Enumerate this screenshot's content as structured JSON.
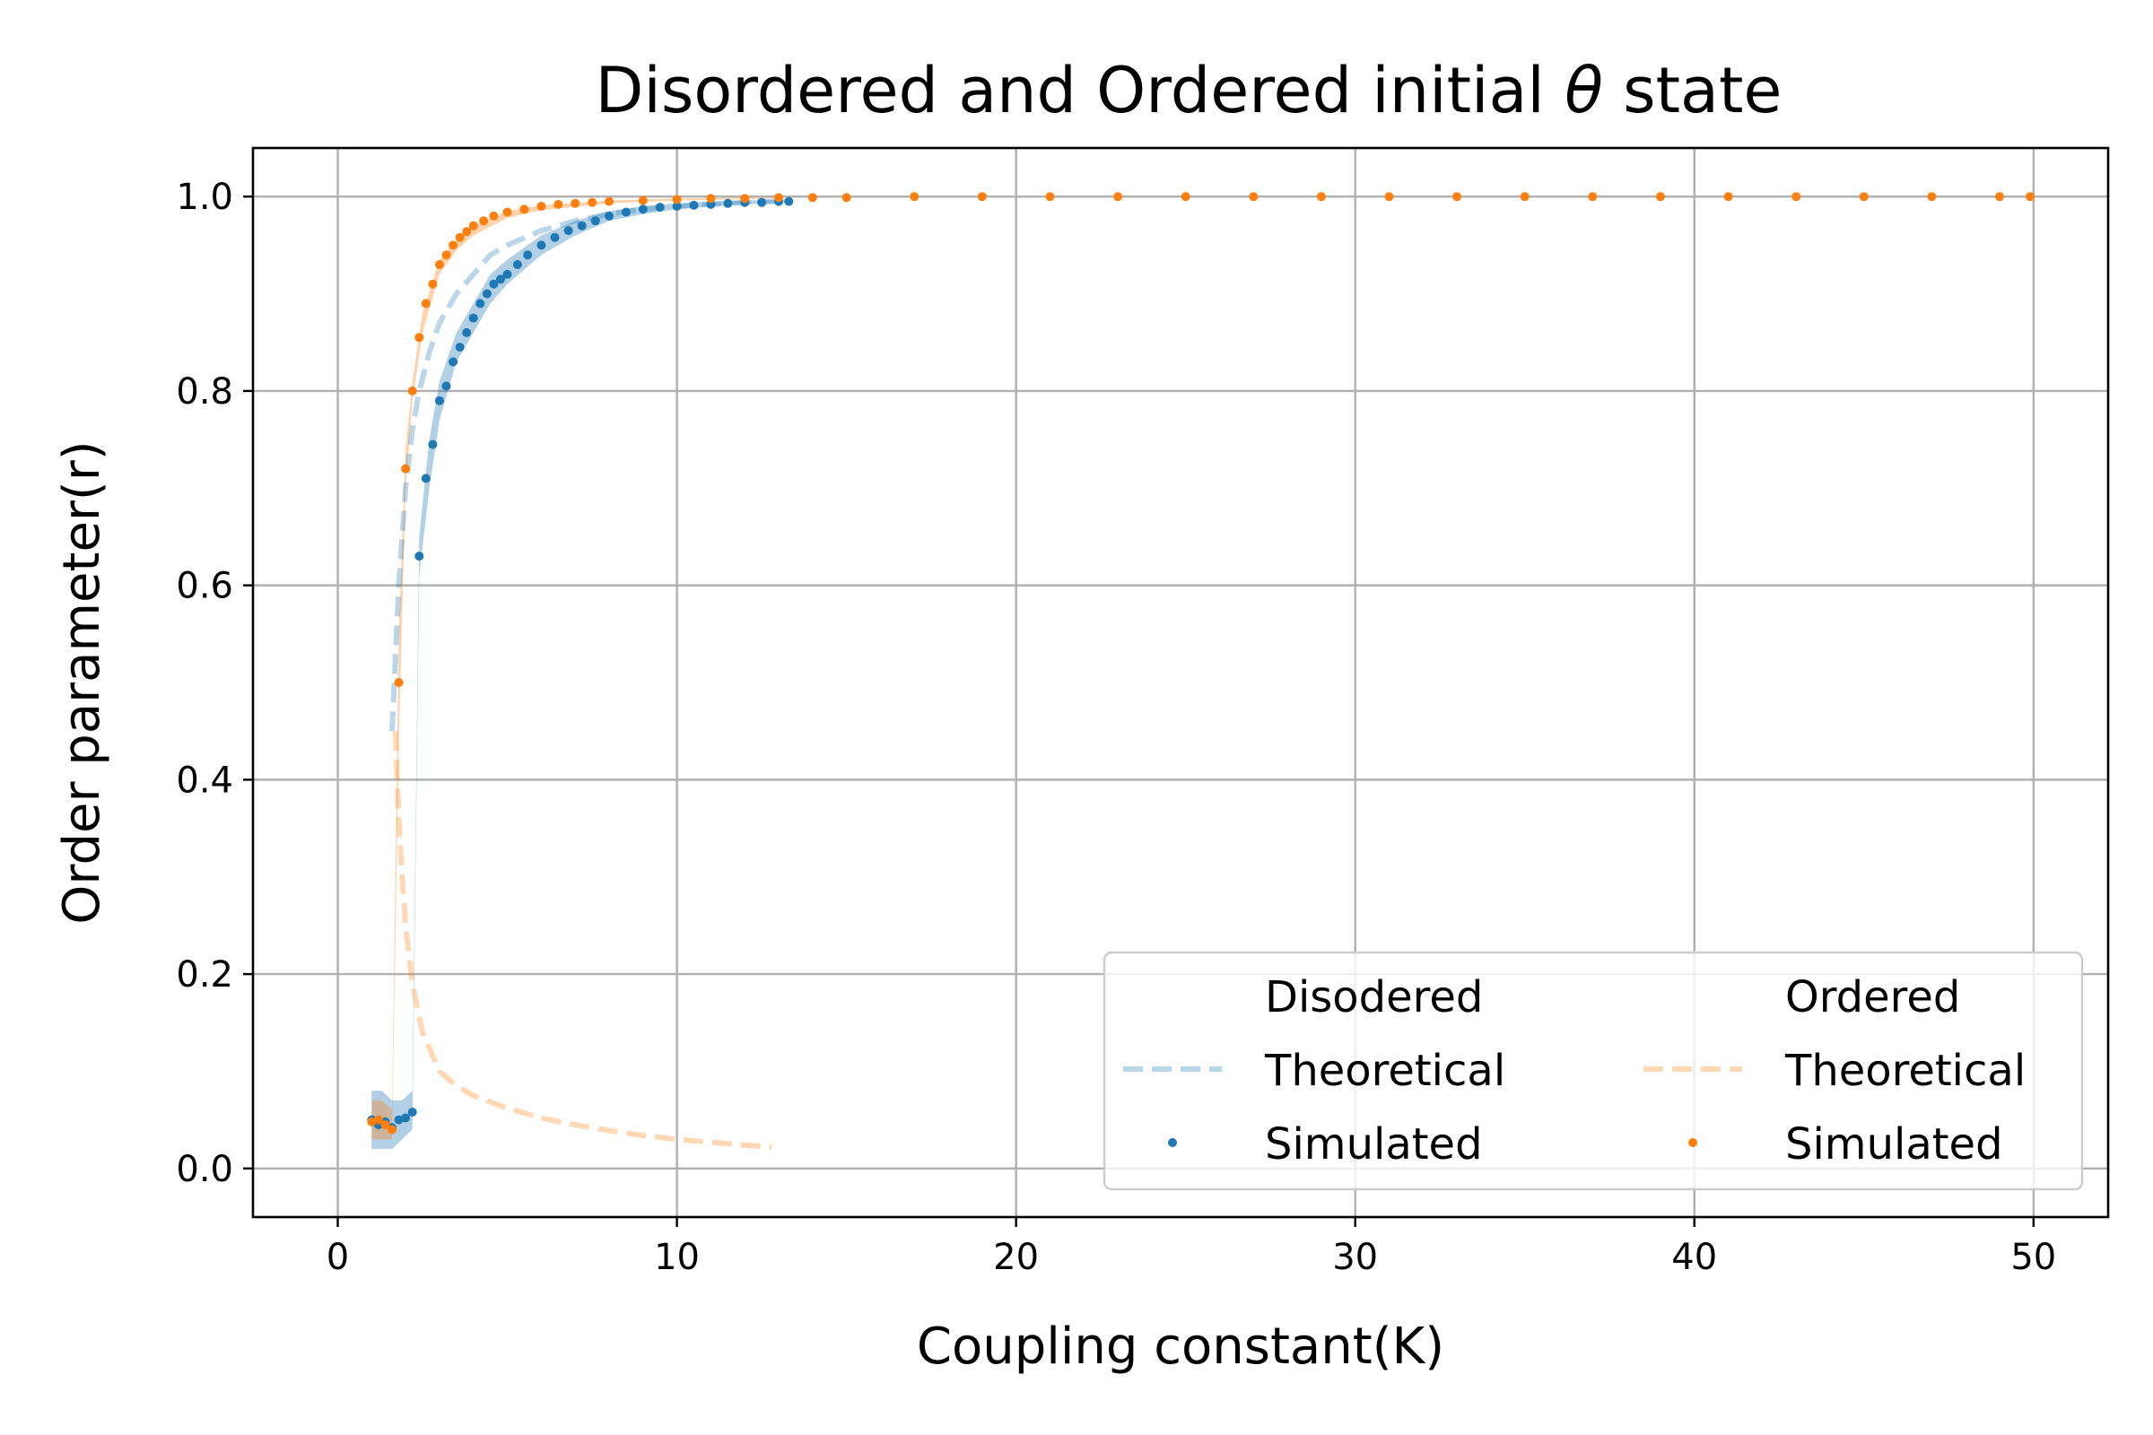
{
  "chart_data": {
    "type": "scatter",
    "title_prefix": "Disordered and Ordered initial ",
    "title_symbol": "θ",
    "title_suffix": " state",
    "xlabel": "Coupling constant(K)",
    "ylabel": "Order parameter(r)",
    "xlim": [
      -2.5,
      52.2
    ],
    "ylim": [
      -0.05,
      1.05
    ],
    "xticks": [
      0,
      10,
      20,
      30,
      40,
      50
    ],
    "xtick_labels": [
      "0",
      "10",
      "20",
      "30",
      "40",
      "50"
    ],
    "yticks": [
      0.0,
      0.2,
      0.4,
      0.6,
      0.8,
      1.0
    ],
    "ytick_labels": [
      "0.0",
      "0.2",
      "0.4",
      "0.6",
      "0.8",
      "1.0"
    ],
    "grid": true,
    "legend_position": "lower-right",
    "legend": {
      "disordered_header": "Disodered",
      "ordered_header": "Ordered",
      "theoretical_label": "Theoretical",
      "simulated_label": "Simulated"
    },
    "colors": {
      "disordered": "#1f77b4",
      "ordered": "#ff7f0e"
    },
    "series": [
      {
        "name": "Disodered Theoretical",
        "style": "dashed",
        "x": [
          1.6,
          1.8,
          2.0,
          2.2,
          2.4,
          2.7,
          3.0,
          3.5,
          4.0,
          4.5,
          5.0,
          6.0,
          7.0,
          8.0,
          9.0,
          10.0,
          11.0,
          12.0,
          13.0
        ],
        "y": [
          0.45,
          0.6,
          0.7,
          0.76,
          0.8,
          0.84,
          0.87,
          0.9,
          0.92,
          0.94,
          0.95,
          0.965,
          0.975,
          0.982,
          0.987,
          0.99,
          0.992,
          0.994,
          0.995
        ]
      },
      {
        "name": "Ordered Theoretical",
        "style": "dashed",
        "x": [
          1.7,
          1.8,
          1.9,
          2.0,
          2.2,
          2.5,
          3.0,
          3.5,
          4.0,
          5.0,
          6.0,
          7.0,
          8.0,
          9.0,
          10.0,
          11.0,
          12.0,
          12.8
        ],
        "y": [
          0.45,
          0.36,
          0.3,
          0.25,
          0.19,
          0.14,
          0.1,
          0.085,
          0.075,
          0.062,
          0.052,
          0.045,
          0.039,
          0.034,
          0.03,
          0.027,
          0.024,
          0.022
        ]
      },
      {
        "name": "Disodered Simulated",
        "style": "points",
        "x": [
          1.0,
          1.2,
          1.4,
          1.6,
          1.8,
          2.0,
          2.2,
          2.4,
          2.6,
          2.8,
          3.0,
          3.2,
          3.4,
          3.6,
          3.8,
          4.0,
          4.2,
          4.4,
          4.6,
          4.8,
          5.0,
          5.3,
          5.6,
          6.0,
          6.4,
          6.8,
          7.2,
          7.6,
          8.0,
          8.5,
          9.0,
          9.5,
          10.0,
          10.5,
          11.0,
          11.5,
          12.0,
          12.5,
          13.0,
          13.3
        ],
        "y": [
          0.05,
          0.045,
          0.048,
          0.042,
          0.05,
          0.052,
          0.058,
          0.63,
          0.71,
          0.745,
          0.79,
          0.805,
          0.83,
          0.845,
          0.86,
          0.875,
          0.89,
          0.9,
          0.91,
          0.915,
          0.92,
          0.93,
          0.94,
          0.95,
          0.958,
          0.965,
          0.97,
          0.975,
          0.98,
          0.984,
          0.987,
          0.989,
          0.99,
          0.991,
          0.992,
          0.993,
          0.994,
          0.994,
          0.995,
          0.995
        ]
      },
      {
        "name": "Ordered Simulated",
        "style": "points",
        "x": [
          1.0,
          1.2,
          1.4,
          1.6,
          1.8,
          2.0,
          2.2,
          2.4,
          2.6,
          2.8,
          3.0,
          3.2,
          3.4,
          3.6,
          3.8,
          4.0,
          4.3,
          4.6,
          5.0,
          5.5,
          6.0,
          6.5,
          7.0,
          7.5,
          8.0,
          9.0,
          10.0,
          11.0,
          12.0,
          13.0,
          14.0,
          15.0,
          17.0,
          19.0,
          21.0,
          23.0,
          25.0,
          27.0,
          29.0,
          31.0,
          33.0,
          35.0,
          37.0,
          39.0,
          41.0,
          43.0,
          45.0,
          47.0,
          49.0,
          49.9
        ],
        "y": [
          0.048,
          0.05,
          0.045,
          0.04,
          0.5,
          0.72,
          0.8,
          0.855,
          0.89,
          0.91,
          0.93,
          0.94,
          0.95,
          0.958,
          0.964,
          0.97,
          0.975,
          0.98,
          0.984,
          0.987,
          0.99,
          0.992,
          0.993,
          0.994,
          0.995,
          0.996,
          0.997,
          0.998,
          0.998,
          0.999,
          0.999,
          0.999,
          1.0,
          1.0,
          1.0,
          1.0,
          1.0,
          1.0,
          1.0,
          1.0,
          1.0,
          1.0,
          1.0,
          1.0,
          1.0,
          1.0,
          1.0,
          1.0,
          1.0,
          1.0
        ]
      }
    ],
    "bands": [
      {
        "name": "Disodered spread",
        "x": [
          1.0,
          1.3,
          1.6,
          1.9,
          2.2,
          2.4,
          2.7,
          3.0,
          3.5,
          4.0,
          4.5,
          5.0,
          6.0,
          7.0,
          8.0,
          9.0,
          10.0,
          11.0,
          12.0,
          13.3
        ],
        "lower": [
          0.02,
          0.02,
          0.02,
          0.03,
          0.04,
          0.61,
          0.7,
          0.77,
          0.83,
          0.86,
          0.89,
          0.91,
          0.94,
          0.96,
          0.975,
          0.982,
          0.987,
          0.99,
          0.992,
          0.994
        ],
        "upper": [
          0.08,
          0.08,
          0.07,
          0.07,
          0.08,
          0.65,
          0.75,
          0.81,
          0.86,
          0.89,
          0.92,
          0.935,
          0.96,
          0.975,
          0.985,
          0.99,
          0.993,
          0.995,
          0.996,
          0.997
        ]
      },
      {
        "name": "Ordered spread",
        "x": [
          1.0,
          1.3,
          1.6,
          1.8,
          2.0,
          2.2,
          2.5,
          3.0,
          3.5,
          4.0,
          5.0,
          6.0,
          8.0,
          10.0,
          13.0
        ],
        "lower": [
          0.03,
          0.03,
          0.03,
          0.44,
          0.7,
          0.79,
          0.86,
          0.92,
          0.945,
          0.96,
          0.978,
          0.986,
          0.993,
          0.996,
          0.998
        ],
        "upper": [
          0.07,
          0.07,
          0.06,
          0.55,
          0.74,
          0.81,
          0.88,
          0.935,
          0.955,
          0.97,
          0.985,
          0.991,
          0.996,
          0.998,
          0.999
        ]
      }
    ]
  }
}
